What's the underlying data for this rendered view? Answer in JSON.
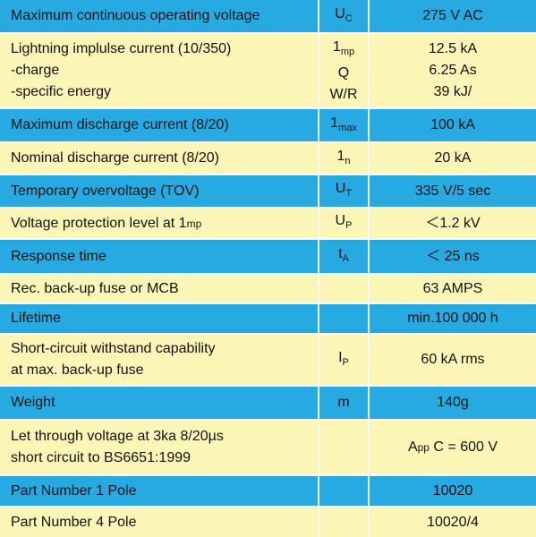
{
  "table": {
    "rows": [
      {
        "parameter": [
          "Maximum continuous operating voltage"
        ],
        "symbol": [
          [
            "U",
            {
              "t": "C",
              "s": "sub"
            }
          ]
        ],
        "value": [
          "275 V AC"
        ]
      },
      {
        "parameter": [
          "Lightning implulse current (10/350)",
          "-charge",
          "-specific energy"
        ],
        "symbol": [
          [
            "1",
            {
              "t": "mp",
              "s": "sub"
            }
          ],
          "Q",
          "W/R"
        ],
        "value": [
          "12.5 kA",
          "6.25 As",
          "39 kJ/"
        ]
      },
      {
        "parameter": [
          "Maximum discharge current (8/20)"
        ],
        "symbol": [
          [
            "1",
            {
              "t": "max",
              "s": "sub"
            }
          ]
        ],
        "value": [
          "100 kA"
        ]
      },
      {
        "parameter": [
          "Nominal discharge current (8/20)"
        ],
        "symbol": [
          [
            "1",
            {
              "t": "n",
              "s": "sub"
            }
          ]
        ],
        "value": [
          "20 kA"
        ]
      },
      {
        "parameter": [
          "Temporary overvoltage (TOV)"
        ],
        "symbol": [
          [
            "U",
            {
              "t": "T",
              "s": "sub"
            }
          ]
        ],
        "value": [
          "335 V/5 sec"
        ]
      },
      {
        "parameter": [
          [
            "Voltage protection level at 1",
            {
              "t": "mp",
              "s": "small"
            }
          ]
        ],
        "symbol": [
          [
            "U",
            {
              "t": "P",
              "s": "sub"
            }
          ]
        ],
        "value": [
          "＜1.2 kV"
        ]
      },
      {
        "parameter": [
          "Response time"
        ],
        "symbol": [
          [
            "t",
            {
              "t": "A",
              "s": "sub"
            }
          ]
        ],
        "value": [
          "＜ 25 ns"
        ]
      },
      {
        "parameter": [
          "Rec. back-up fuse or MCB"
        ],
        "symbol": [],
        "value": [
          "63 AMPS"
        ]
      },
      {
        "parameter": [
          "Lifetime"
        ],
        "symbol": [],
        "value": [
          "min.100 000 h"
        ]
      },
      {
        "parameter": [
          "Short-circuit withstand capability",
          "at max. back-up fuse"
        ],
        "symbol": [
          [
            "I",
            {
              "t": "P",
              "s": "sub"
            }
          ]
        ],
        "value": [
          "60 kA rms"
        ]
      },
      {
        "parameter": [
          "Weight"
        ],
        "symbol": [
          "m"
        ],
        "value": [
          "140g"
        ]
      },
      {
        "parameter": [
          "Let through voltage at 3ka 8/20µs",
          "short circuit to BS6651:1999"
        ],
        "symbol": [],
        "value": [
          [
            "A",
            {
              "t": "pp",
              "s": "small"
            },
            " C = 600 V"
          ]
        ]
      },
      {
        "parameter": [
          "Part Number 1 Pole"
        ],
        "symbol": [],
        "value": [
          "10020"
        ]
      },
      {
        "parameter": [
          "Part Number 4 Pole"
        ],
        "symbol": [],
        "value": [
          "10020/4"
        ]
      }
    ]
  }
}
